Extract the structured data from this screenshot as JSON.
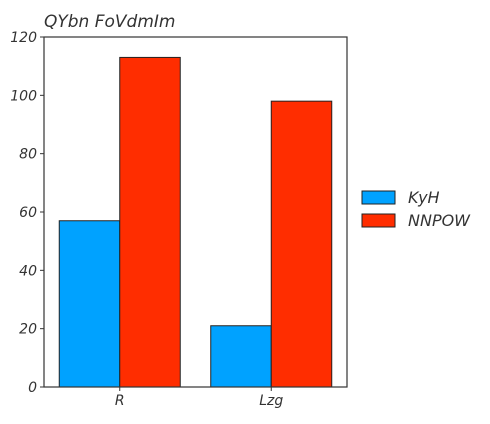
{
  "chart_data": {
    "type": "bar",
    "title": "QYbn FoVdmIm",
    "xlabel": "",
    "ylabel": "",
    "categories": [
      "R",
      "Lzg"
    ],
    "series": [
      {
        "name": "KyH",
        "values": [
          57,
          21
        ],
        "color": "#00a2ff"
      },
      {
        "name": "NNPOW",
        "values": [
          113,
          98
        ],
        "color": "#ff2d00"
      }
    ],
    "ylim": [
      0,
      120
    ],
    "yticks": [
      0,
      20,
      40,
      60,
      80,
      100,
      120
    ],
    "grid": false,
    "legend_position": "right"
  }
}
